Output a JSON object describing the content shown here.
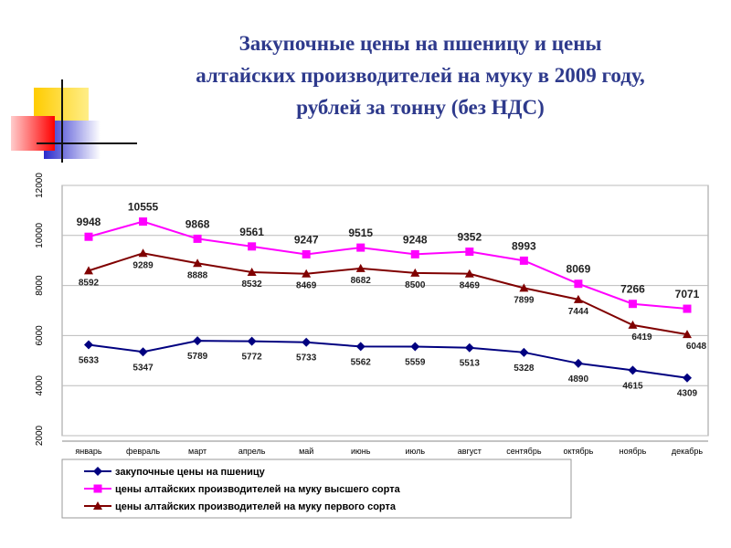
{
  "title_lines": [
    "Закупочные цены на пшеницу и  цены",
    "алтайских производителей на муку  в 2009 году,",
    "рублей за тонну (без НДС)"
  ],
  "chart_data": {
    "type": "line",
    "title": "Закупочные цены на пшеницу и цены алтайских производителей на муку в 2009 году, рублей за тонну (без НДС)",
    "categories": [
      "январь",
      "февраль",
      "март",
      "апрель",
      "май",
      "июнь",
      "июль",
      "август",
      "сентябрь",
      "октябрь",
      "ноябрь",
      "декабрь"
    ],
    "ylim": [
      2000,
      12000
    ],
    "yticks": [
      "2000",
      "4000",
      "6000",
      "8000",
      "10000",
      "12000"
    ],
    "grid": true,
    "legend_position": "bottom",
    "series": [
      {
        "name": "закупочные цены на пшеницу",
        "color": "#000080",
        "marker": "diamond",
        "values": [
          5633,
          5347,
          5789,
          5772,
          5733,
          5562,
          5559,
          5513,
          5328,
          4890,
          4615,
          4309
        ]
      },
      {
        "name": "цены алтайских производителей на муку высшего сорта",
        "color": "#ff00ff",
        "marker": "square",
        "values": [
          9948,
          10555,
          9868,
          9561,
          9247,
          9515,
          9248,
          9352,
          8993,
          8069,
          7266,
          7071
        ]
      },
      {
        "name": "цены алтайских производителей на муку первого сорта",
        "color": "#800000",
        "marker": "triangle",
        "values": [
          8592,
          9289,
          8888,
          8532,
          8469,
          8682,
          8500,
          8469,
          7899,
          7444,
          6419,
          6048
        ]
      }
    ]
  }
}
